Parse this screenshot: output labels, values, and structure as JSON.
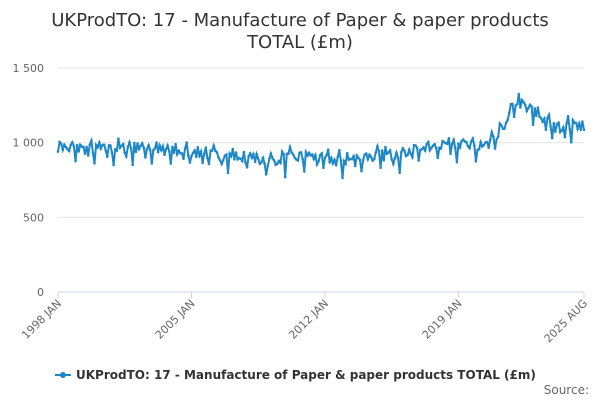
{
  "chart_data": {
    "type": "line",
    "title_line1": "UKProdTO: 17 - Manufacture of Paper & paper products",
    "title_line2": "TOTAL (£m)",
    "xlabel": "",
    "ylabel": "",
    "ylim": [
      0,
      1500
    ],
    "yticks": [
      0,
      500,
      1000,
      1500
    ],
    "ytick_labels": [
      "0",
      "500",
      "1 000",
      "1 500"
    ],
    "x_start": "1998 JAN",
    "x_end": "2025 AUG",
    "xticks": [
      "1998 JAN",
      "2005 JAN",
      "2012 JAN",
      "2019 JAN",
      "2025 AUG"
    ],
    "grid": true,
    "legend_position": "bottom",
    "series": [
      {
        "name": "UKProdTO: 17 - Manufacture of Paper & paper products TOTAL (£m)",
        "color": "#1e88c7",
        "frequency": "monthly",
        "annual_anchors": [
          {
            "year": 1998,
            "value": 975
          },
          {
            "year": 1999,
            "value": 960
          },
          {
            "year": 2000,
            "value": 955
          },
          {
            "year": 2001,
            "value": 960
          },
          {
            "year": 2002,
            "value": 970
          },
          {
            "year": 2003,
            "value": 960
          },
          {
            "year": 2004,
            "value": 940
          },
          {
            "year": 2005,
            "value": 940
          },
          {
            "year": 2006,
            "value": 920
          },
          {
            "year": 2007,
            "value": 910
          },
          {
            "year": 2008,
            "value": 900
          },
          {
            "year": 2009,
            "value": 875
          },
          {
            "year": 2010,
            "value": 900
          },
          {
            "year": 2011,
            "value": 910
          },
          {
            "year": 2012,
            "value": 890
          },
          {
            "year": 2013,
            "value": 880
          },
          {
            "year": 2014,
            "value": 905
          },
          {
            "year": 2015,
            "value": 915
          },
          {
            "year": 2016,
            "value": 930
          },
          {
            "year": 2017,
            "value": 960
          },
          {
            "year": 2018,
            "value": 990
          },
          {
            "year": 2019,
            "value": 1000
          },
          {
            "year": 2020,
            "value": 960
          },
          {
            "year": 2021,
            "value": 1030
          },
          {
            "year": 2022,
            "value": 1280
          },
          {
            "year": 2023,
            "value": 1200
          },
          {
            "year": 2024,
            "value": 1100
          },
          {
            "year": 2025,
            "value": 1120
          }
        ]
      }
    ]
  },
  "source_label": "Source:"
}
